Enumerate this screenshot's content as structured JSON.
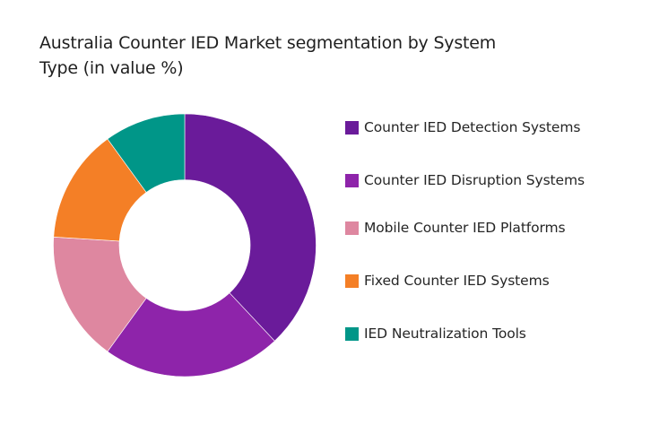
{
  "chart_data": {
    "type": "pie",
    "variant": "donut",
    "title": "Australia Counter IED Market segmentation by System Type (in value %)",
    "categories": [
      "Counter IED Detection Systems",
      "Counter IED Disruption Systems",
      "Mobile Counter IED Platforms",
      "Fixed Counter IED Systems",
      "IED Neutralization Tools"
    ],
    "values": [
      38,
      22,
      16,
      14,
      10
    ],
    "unit": "%",
    "colors": [
      "#6A1B9A",
      "#8E24AA",
      "#DE87A0",
      "#F47F26",
      "#009688"
    ],
    "legend_position": "right",
    "start_angle": "top, clockwise",
    "data_labels": false
  },
  "title": {
    "text": "Australia Counter IED Market segmentation by System Type (in value %)"
  },
  "legend": {
    "items": [
      {
        "label": "Counter IED Detection Systems",
        "color": "#6A1B9A"
      },
      {
        "label": "Counter IED Disruption Systems",
        "color": "#8E24AA"
      },
      {
        "label": "Mobile Counter IED Platforms",
        "color": "#DE87A0"
      },
      {
        "label": "Fixed Counter IED Systems",
        "color": "#F47F26"
      },
      {
        "label": "IED Neutralization Tools",
        "color": "#009688"
      }
    ]
  }
}
